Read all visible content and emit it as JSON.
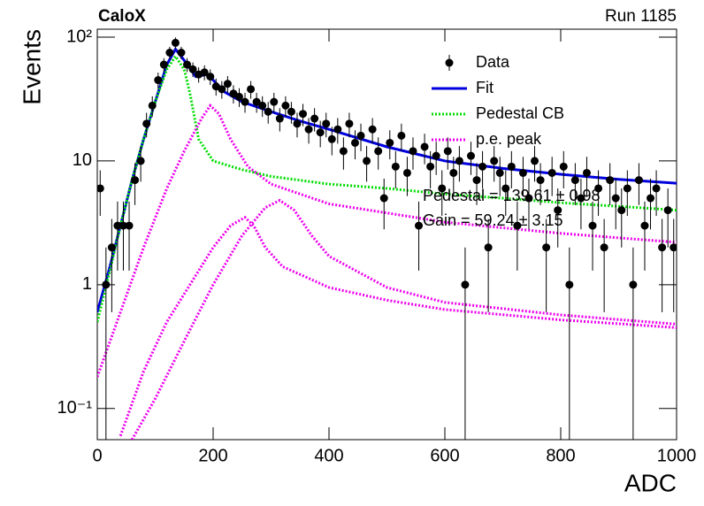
{
  "chart_data": {
    "type": "scatter",
    "title": "CaloX",
    "subtitle": "Run 1185",
    "x_label": "ADC",
    "y_label": "Events",
    "log_y": true,
    "xlim": [
      0,
      1000
    ],
    "ylim": [
      0.056,
      116
    ],
    "xticks": [
      0,
      200,
      400,
      600,
      800,
      1000
    ],
    "yticks": [
      {
        "value": 0.1,
        "label": "10⁻¹"
      },
      1,
      10,
      {
        "value": 100,
        "label": "10²"
      }
    ],
    "annotations": [
      "Pedestal = 139.61 ± 0.98",
      "Gain = 59.24 ± 3.15"
    ],
    "data": {
      "name": "Data",
      "color": "#000000",
      "x": [
        5,
        15,
        25,
        35,
        45,
        55,
        65,
        75,
        85,
        95,
        105,
        115,
        125,
        135,
        145,
        155,
        165,
        175,
        185,
        195,
        205,
        215,
        225,
        235,
        245,
        255,
        265,
        275,
        285,
        295,
        305,
        315,
        325,
        335,
        345,
        355,
        365,
        375,
        385,
        395,
        405,
        415,
        425,
        435,
        445,
        455,
        465,
        475,
        485,
        495,
        505,
        515,
        525,
        535,
        545,
        555,
        565,
        575,
        585,
        595,
        605,
        615,
        625,
        635,
        645,
        655,
        665,
        675,
        685,
        695,
        705,
        715,
        725,
        735,
        745,
        755,
        765,
        775,
        785,
        795,
        805,
        815,
        825,
        835,
        845,
        855,
        865,
        875,
        885,
        895,
        905,
        915,
        925,
        935,
        945,
        955,
        965,
        975,
        985,
        995
      ],
      "values": [
        6,
        1,
        2,
        3,
        3,
        3,
        7,
        10,
        20,
        28,
        45,
        60,
        75,
        90,
        75,
        60,
        55,
        50,
        52,
        48,
        40,
        38,
        42,
        35,
        33,
        30,
        38,
        30,
        28,
        25,
        30,
        22,
        28,
        25,
        20,
        24,
        18,
        22,
        17,
        20,
        15,
        18,
        12,
        20,
        14,
        16,
        10,
        18,
        12,
        5,
        14,
        9,
        16,
        8,
        12,
        3,
        13,
        9,
        11,
        6,
        12,
        8,
        10,
        1,
        11,
        7,
        9,
        2,
        10,
        8,
        6,
        9,
        3,
        8,
        5,
        10,
        7,
        2,
        8,
        4,
        9,
        1,
        7,
        5,
        8,
        3,
        6,
        2,
        7,
        5,
        4,
        6,
        1,
        7,
        3,
        5,
        6,
        2,
        4,
        2
      ],
      "errors": [
        2.4,
        1,
        1.4,
        1.7,
        1.7,
        1.7,
        2.6,
        3.2,
        4.5,
        5.3,
        6.7,
        7.7,
        8.7,
        9.5,
        8.7,
        7.7,
        7.4,
        7.1,
        7.2,
        6.9,
        6.3,
        6.2,
        6.5,
        5.9,
        5.7,
        5.5,
        6.2,
        5.5,
        5.3,
        5,
        5.5,
        4.7,
        5.3,
        5,
        4.5,
        4.9,
        4.2,
        4.7,
        4.1,
        4.5,
        3.9,
        4.2,
        3.5,
        4.5,
        3.7,
        4,
        3.2,
        4.2,
        3.5,
        2.2,
        3.7,
        3,
        4,
        2.8,
        3.5,
        1.7,
        3.6,
        3,
        3.3,
        2.4,
        3.5,
        2.8,
        3.2,
        1,
        3.3,
        2.6,
        3,
        1.4,
        3.2,
        2.8,
        2.4,
        3,
        1.7,
        2.8,
        2.2,
        3.2,
        2.6,
        1.4,
        2.8,
        2,
        3,
        1,
        2.6,
        2.2,
        2.8,
        1.7,
        2.4,
        1.4,
        2.6,
        2.2,
        2,
        2.4,
        1,
        2.6,
        1.7,
        2.2,
        2.4,
        1.4,
        2,
        1.4
      ]
    },
    "curves": [
      {
        "name": "Fit",
        "color": "#0000dd",
        "style": "solid",
        "components": [
          {
            "x": [
              0,
              20,
              40,
              60,
              80,
              100,
              120,
              135,
              150,
              170,
              190,
              200,
              220,
              250,
              300,
              350,
              400,
              500,
              600,
              700,
              800,
              900,
              1000
            ],
            "values": [
              0.6,
              1.3,
              3,
              7,
              15,
              30,
              60,
              80,
              65,
              48,
              50,
              45,
              36,
              30,
              25,
              21,
              18,
              13,
              10,
              8.7,
              7.8,
              7.1,
              6.6
            ]
          }
        ]
      },
      {
        "name": "Pedestal CB",
        "color": "#00dd00",
        "style": "dotted",
        "components": [
          {
            "x": [
              0,
              20,
              40,
              60,
              80,
              100,
              120,
              135,
              150,
              160,
              175,
              200,
              250,
              300,
              400,
              500,
              600,
              700,
              800,
              900,
              1000
            ],
            "values": [
              0.5,
              1.2,
              3,
              7,
              15,
              30,
              55,
              70,
              55,
              35,
              15,
              10,
              8.5,
              7.5,
              6.5,
              6,
              5.4,
              5,
              4.6,
              4.3,
              4
            ]
          }
        ]
      },
      {
        "name": "p.e. peak",
        "color": "#ee00ee",
        "style": "dotted",
        "components": [
          {
            "x": [
              0,
              40,
              80,
              120,
              150,
              180,
              195,
              210,
              230,
              260,
              300,
              400,
              500,
              600,
              800,
              1000
            ],
            "values": [
              0.18,
              0.6,
              2,
              6,
              12,
              22,
              28,
              24,
              15,
              9,
              6.5,
              4.5,
              3.8,
              3.2,
              2.6,
              2.2
            ]
          },
          {
            "x": [
              40,
              80,
              120,
              160,
              200,
              230,
              255,
              270,
              290,
              320,
              400,
              500,
              600,
              800,
              1000
            ],
            "values": [
              0.06,
              0.2,
              0.5,
              1,
              2,
              3,
              3.5,
              3,
              2,
              1.4,
              0.95,
              0.75,
              0.63,
              0.52,
              0.45
            ]
          },
          {
            "x": [
              60,
              100,
              150,
              200,
              250,
              290,
              315,
              340,
              370,
              400,
              500,
              600,
              800,
              1000
            ],
            "values": [
              0.056,
              0.12,
              0.35,
              1,
              2.5,
              4.2,
              4.8,
              4,
              2.5,
              1.7,
              0.95,
              0.72,
              0.57,
              0.48
            ]
          }
        ]
      }
    ]
  }
}
